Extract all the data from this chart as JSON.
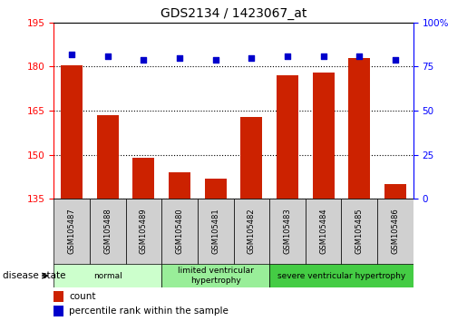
{
  "title": "GDS2134 / 1423067_at",
  "samples": [
    "GSM105487",
    "GSM105488",
    "GSM105489",
    "GSM105480",
    "GSM105481",
    "GSM105482",
    "GSM105483",
    "GSM105484",
    "GSM105485",
    "GSM105486"
  ],
  "counts": [
    180.5,
    163.5,
    149.0,
    144.0,
    142.0,
    163.0,
    177.0,
    178.0,
    183.0,
    140.0
  ],
  "percentiles": [
    82,
    81,
    79,
    80,
    79,
    80,
    81,
    81,
    81,
    79
  ],
  "ylim_left": [
    135,
    195
  ],
  "ylim_right": [
    0,
    100
  ],
  "yticks_left": [
    135,
    150,
    165,
    180,
    195
  ],
  "yticks_right": [
    0,
    25,
    50,
    75,
    100
  ],
  "bar_color": "#cc2200",
  "dot_color": "#0000cc",
  "bg_color": "#ffffff",
  "disease_groups": [
    {
      "label": "normal",
      "start": 0,
      "end": 3,
      "color": "#ccffcc"
    },
    {
      "label": "limited ventricular\nhypertrophy",
      "start": 3,
      "end": 6,
      "color": "#99ee99"
    },
    {
      "label": "severe ventricular hypertrophy",
      "start": 6,
      "end": 10,
      "color": "#44cc44"
    }
  ],
  "xlabel_label": "disease state",
  "legend_count_label": "count",
  "legend_pct_label": "percentile rank within the sample",
  "sample_bg": "#d0d0d0"
}
